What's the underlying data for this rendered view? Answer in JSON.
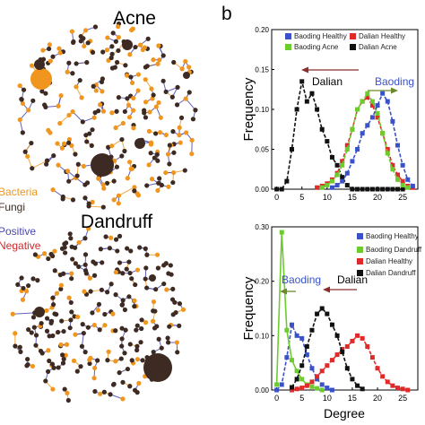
{
  "panel_label_b": "b",
  "left": {
    "acne_title": "Acne",
    "dandruff_title": "Dandruff",
    "legend": {
      "bacteria": "Bacteria",
      "fungi": "Fungi",
      "positive": "Positive",
      "negative": "Negative"
    },
    "colors": {
      "bacteria": "#f0961e",
      "fungi": "#3d2a22",
      "positive": "#4646b4",
      "negative": "#d02828"
    }
  },
  "chart_data": [
    {
      "type": "line",
      "xlabel": "",
      "ylabel": "Frequency",
      "xlim": [
        -1,
        28
      ],
      "ylim": [
        0,
        0.2
      ],
      "xticks": [
        0,
        5,
        10,
        15,
        20,
        25
      ],
      "yticks": [
        "0.00",
        "0.05",
        "0.10",
        "0.15",
        "0.20"
      ],
      "annotations": {
        "left_arrow_text": "Dalian",
        "right_arrow_text": "Baoding"
      },
      "series": [
        {
          "name": "Dalian Acne",
          "color": "#111111",
          "marker": "square",
          "dashed": true,
          "x": [
            0,
            1,
            2,
            3,
            4,
            5,
            6,
            7,
            8,
            9,
            10,
            11,
            12,
            13,
            14,
            15,
            16,
            17,
            18,
            19,
            20,
            21,
            22,
            23,
            24,
            25
          ],
          "y": [
            0.0,
            0.0,
            0.01,
            0.05,
            0.1,
            0.135,
            0.11,
            0.12,
            0.1,
            0.075,
            0.06,
            0.04,
            0.03,
            0.015,
            0.005,
            0,
            0,
            0,
            0,
            0,
            0,
            0,
            0,
            0,
            0,
            0
          ]
        },
        {
          "name": "Dalian Healthy",
          "color": "#e02a2a",
          "marker": "square",
          "dashed": true,
          "x": [
            8,
            9,
            10,
            11,
            12,
            13,
            14,
            15,
            16,
            17,
            18,
            19,
            20,
            21,
            22,
            23,
            24,
            25,
            26,
            27
          ],
          "y": [
            0.002,
            0.004,
            0.007,
            0.012,
            0.02,
            0.035,
            0.055,
            0.075,
            0.1,
            0.11,
            0.115,
            0.105,
            0.09,
            0.07,
            0.05,
            0.03,
            0.018,
            0.01,
            0.004,
            0.002
          ]
        },
        {
          "name": "Baoding Acne",
          "color": "#6ccc2e",
          "marker": "square",
          "dashed": true,
          "x": [
            9,
            10,
            11,
            12,
            13,
            14,
            15,
            16,
            17,
            18,
            19,
            20,
            21,
            22,
            23,
            24,
            25,
            26
          ],
          "y": [
            0.002,
            0.005,
            0.01,
            0.018,
            0.03,
            0.05,
            0.075,
            0.1,
            0.11,
            0.12,
            0.11,
            0.095,
            0.07,
            0.045,
            0.025,
            0.012,
            0.005,
            0.002
          ]
        },
        {
          "name": "Baoding Healthy",
          "color": "#3a52c8",
          "marker": "square",
          "dashed": true,
          "x": [
            11,
            12,
            13,
            14,
            15,
            16,
            17,
            18,
            19,
            20,
            21,
            22,
            23,
            24,
            25,
            26,
            27
          ],
          "y": [
            0.002,
            0.005,
            0.01,
            0.02,
            0.035,
            0.05,
            0.07,
            0.08,
            0.09,
            0.105,
            0.12,
            0.11,
            0.085,
            0.055,
            0.03,
            0.012,
            0.004
          ]
        }
      ],
      "legend_order": [
        "Baoding Healthy",
        "Dalian Healthy",
        "Baoding Acne",
        "Dalian Acne"
      ]
    },
    {
      "type": "line",
      "xlabel": "Degree",
      "ylabel": "Frequency",
      "xlim": [
        -1,
        28
      ],
      "ylim": [
        0,
        0.3
      ],
      "xticks": [
        0,
        5,
        10,
        15,
        20,
        25
      ],
      "yticks": [
        "0.00",
        "0.10",
        "0.20",
        "0.30"
      ],
      "annotations": {
        "left_arrow_text": "Baoding",
        "right_arrow_text": "Dalian"
      },
      "series": [
        {
          "name": "Baoding Healthy",
          "color": "#3a52c8",
          "marker": "square",
          "dashed": true,
          "x": [
            0,
            1,
            2,
            3,
            4,
            5,
            6,
            7,
            8,
            9,
            10,
            11
          ],
          "y": [
            0.0,
            0.01,
            0.06,
            0.12,
            0.1,
            0.095,
            0.065,
            0.04,
            0.02,
            0.01,
            0.004,
            0.0
          ]
        },
        {
          "name": "Baoding Dandruff",
          "color": "#6ccc2e",
          "marker": "square",
          "dashed": false,
          "x": [
            0,
            1,
            2,
            3,
            4,
            5,
            6,
            7,
            8,
            9
          ],
          "y": [
            0.01,
            0.29,
            0.11,
            0.055,
            0.035,
            0.02,
            0.01,
            0.006,
            0.003,
            0.0
          ]
        },
        {
          "name": "Dalian Healthy",
          "color": "#e02a2a",
          "marker": "square",
          "dashed": true,
          "x": [
            3,
            4,
            5,
            6,
            7,
            8,
            9,
            10,
            11,
            12,
            13,
            14,
            15,
            16,
            17,
            18,
            19,
            20,
            21,
            22,
            23,
            24,
            25,
            26
          ],
          "y": [
            0.0,
            0.002,
            0.004,
            0.008,
            0.015,
            0.025,
            0.035,
            0.045,
            0.055,
            0.065,
            0.075,
            0.08,
            0.09,
            0.1,
            0.095,
            0.08,
            0.06,
            0.04,
            0.025,
            0.015,
            0.008,
            0.004,
            0.002,
            0.0
          ]
        },
        {
          "name": "Dalian Dandruff",
          "color": "#111111",
          "marker": "square",
          "dashed": true,
          "x": [
            3,
            4,
            5,
            6,
            7,
            8,
            9,
            10,
            11,
            12,
            13,
            14,
            15,
            16,
            17
          ],
          "y": [
            0.005,
            0.02,
            0.045,
            0.08,
            0.11,
            0.14,
            0.15,
            0.14,
            0.12,
            0.1,
            0.07,
            0.04,
            0.02,
            0.008,
            0.002
          ]
        }
      ],
      "legend_order": [
        "Baoding Healthy",
        "Baoding Dandruff",
        "Dalian Healthy",
        "Dalian Dandruff"
      ]
    }
  ]
}
